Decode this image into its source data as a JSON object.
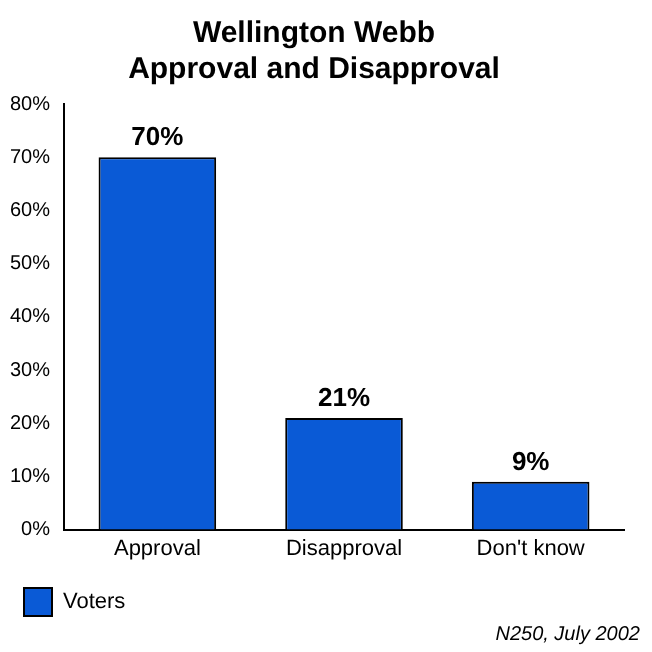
{
  "chart_data": {
    "type": "bar",
    "title": "Wellington Webb\nApproval and Disapproval",
    "categories": [
      "Approval",
      "Disapproval",
      "Don't know"
    ],
    "series": [
      {
        "name": "Voters",
        "color": "#0a5ad6",
        "values": [
          70,
          21,
          9
        ],
        "value_labels": [
          "70%",
          "21%",
          "9%"
        ]
      }
    ],
    "ylim": [
      0,
      80
    ],
    "yticks": [
      {
        "value": 0,
        "label": "0%"
      },
      {
        "value": 10,
        "label": "10%"
      },
      {
        "value": 20,
        "label": "20%"
      },
      {
        "value": 30,
        "label": "30%"
      },
      {
        "value": 40,
        "label": "40%"
      },
      {
        "value": 50,
        "label": "50%"
      },
      {
        "value": 60,
        "label": "60%"
      },
      {
        "value": 70,
        "label": "70%"
      },
      {
        "value": 80,
        "label": "80%"
      }
    ],
    "grid": false,
    "legend": "bottom left",
    "annotations": [
      "N250, July 2002"
    ]
  }
}
